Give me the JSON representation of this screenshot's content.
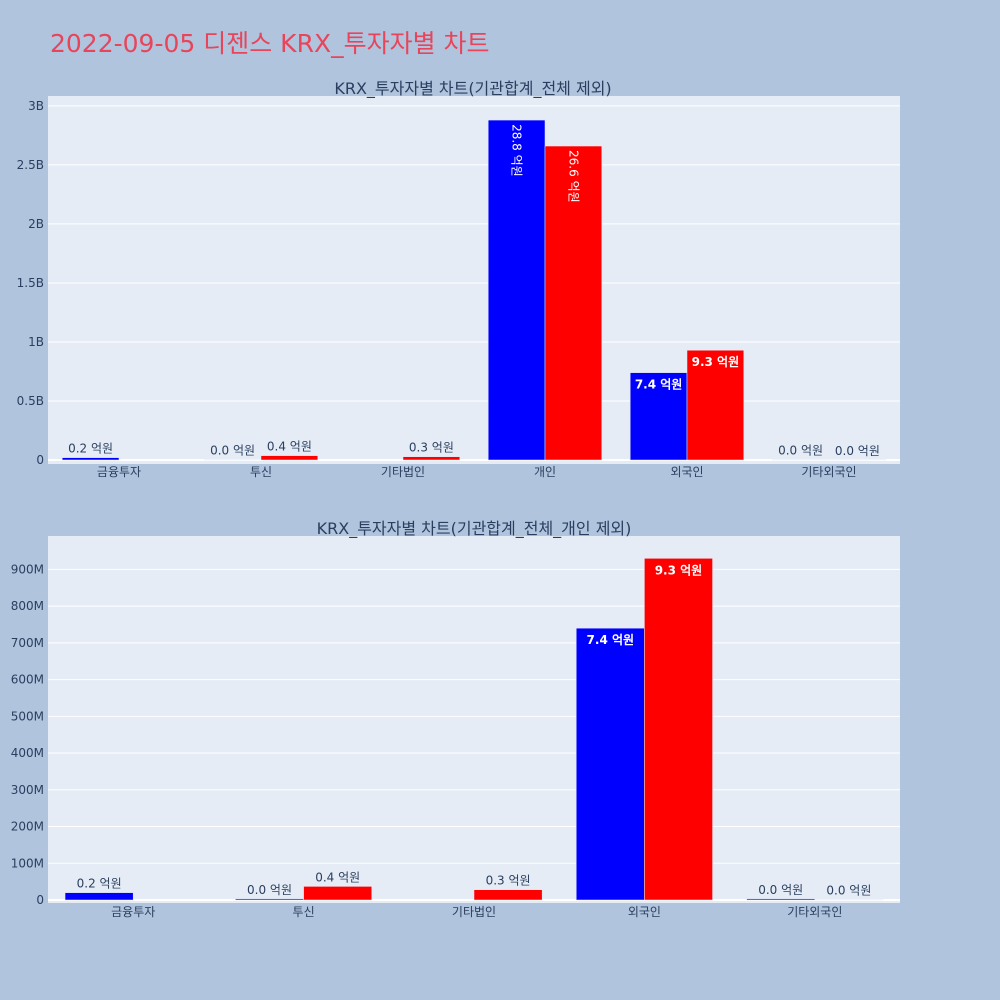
{
  "title": "2022-09-05 디젠스 KRX_투자자별 차트",
  "colors": {
    "page_bg": "#b0c4de",
    "plot_bg": "#e5ecf6",
    "grid": "#ffffff",
    "title": "#e8455b",
    "text": "#2a3f5f",
    "series_blue": "#0000ff",
    "series_red": "#ff0000"
  },
  "chart_data": [
    {
      "type": "bar",
      "title": "KRX_투자자별 차트(기관합계_전체 제외)",
      "categories": [
        "금융투자",
        "투신",
        "기타법인",
        "개인",
        "외국인",
        "기타외국인"
      ],
      "ylim": [
        0,
        3050000000
      ],
      "ytick_values": [
        0,
        500000000,
        1000000000,
        1500000000,
        2000000000,
        2500000000,
        3000000000
      ],
      "ytick_labels": [
        "0",
        "0.5B",
        "1B",
        "1.5B",
        "2B",
        "2.5B",
        "3B"
      ],
      "series": [
        {
          "color": "#0000ff",
          "values": [
            20000000,
            3000000,
            0,
            2880000000,
            740000000,
            3000000
          ],
          "labels": [
            "0.2 억원",
            "0.0 억원",
            "",
            "28.8 억원",
            "7.4 억원",
            "0.0 억원"
          ]
        },
        {
          "color": "#ff0000",
          "values": [
            0,
            37000000,
            28000000,
            2660000000,
            930000000,
            1000000
          ],
          "labels": [
            "",
            "0.4 억원",
            "0.3 억원",
            "26.6 억원",
            "9.3 억원",
            "0.0 억원"
          ]
        }
      ]
    },
    {
      "type": "bar",
      "title": "KRX_투자자별 차트(기관합계_전체_개인 제외)",
      "categories": [
        "금융투자",
        "투신",
        "기타법인",
        "외국인",
        "기타외국인"
      ],
      "ylim": [
        0,
        980000000
      ],
      "ytick_values": [
        0,
        100000000,
        200000000,
        300000000,
        400000000,
        500000000,
        600000000,
        700000000,
        800000000,
        900000000
      ],
      "ytick_labels": [
        "0",
        "100M",
        "200M",
        "300M",
        "400M",
        "500M",
        "600M",
        "700M",
        "800M",
        "900M"
      ],
      "series": [
        {
          "color": "#0000ff",
          "values": [
            20000000,
            3000000,
            0,
            740000000,
            3000000
          ],
          "labels": [
            "0.2 억원",
            "0.0 억원",
            "",
            "7.4 억원",
            "0.0 억원"
          ]
        },
        {
          "color": "#ff0000",
          "values": [
            0,
            37000000,
            28000000,
            930000000,
            1000000
          ],
          "labels": [
            "",
            "0.4 억원",
            "0.3 억원",
            "9.3 억원",
            "0.0 억원"
          ]
        }
      ]
    }
  ]
}
